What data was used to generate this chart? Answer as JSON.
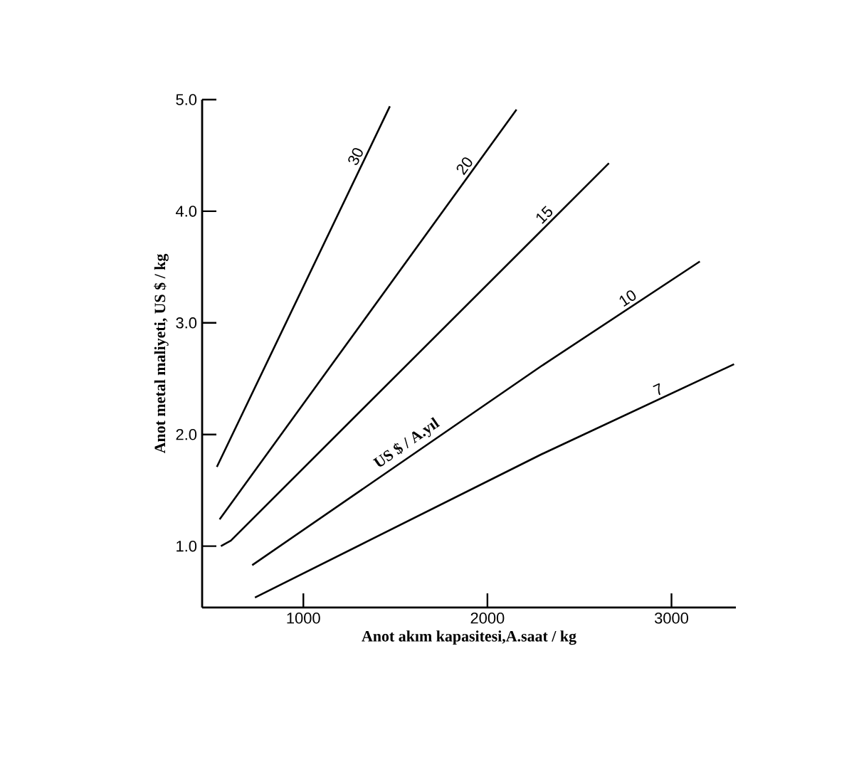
{
  "chart_data": {
    "type": "line",
    "xlabel": "Anot akım kapasitesi,A.saat / kg",
    "ylabel": "Anot metal maliyeti, US $ / kg",
    "xlim": [
      450,
      3350
    ],
    "ylim": [
      0.45,
      5.0
    ],
    "xticks": [
      1000,
      2000,
      3000
    ],
    "yticks": [
      {
        "value": 1,
        "label": "1.0"
      },
      {
        "value": 2,
        "label": "2.0"
      },
      {
        "value": 3,
        "label": "3.0"
      },
      {
        "value": 4,
        "label": "4.0"
      },
      {
        "value": 5,
        "label": "5.0"
      }
    ],
    "series": [
      {
        "name": "30",
        "color": "#000000",
        "x": [
          530,
          1470
        ],
        "values": [
          1.71,
          4.94
        ]
      },
      {
        "name": "20",
        "color": "#000000",
        "x": [
          545,
          2158
        ],
        "values": [
          1.24,
          4.91
        ]
      },
      {
        "name": "15",
        "color": "#000000",
        "x": [
          552,
          606,
          2660
        ],
        "values": [
          1.0,
          1.05,
          4.43
        ]
      },
      {
        "name": "10",
        "color": "#000000",
        "x": [
          722,
          2290,
          3154
        ],
        "values": [
          0.83,
          2.61,
          3.55
        ]
      },
      {
        "name": "7",
        "color": "#000000",
        "x": [
          737,
          2290,
          3340
        ],
        "values": [
          0.54,
          1.82,
          2.63
        ]
      }
    ],
    "annotations": [
      {
        "text": "US $ / A.yıl",
        "x": 1600,
        "y": 1.83
      }
    ],
    "marker": "none",
    "line_style": "solid"
  }
}
